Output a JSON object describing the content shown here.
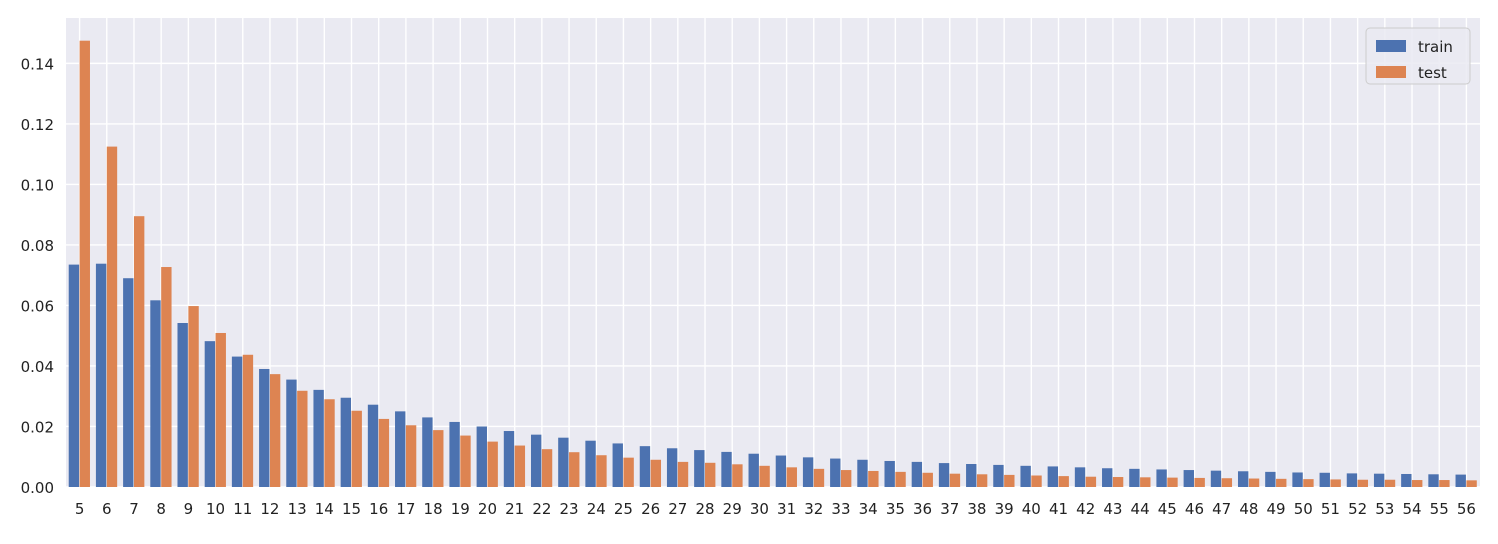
{
  "chart_data": {
    "type": "bar",
    "title": "",
    "xlabel": "",
    "ylabel": "",
    "categories": [
      "5",
      "6",
      "7",
      "8",
      "9",
      "10",
      "11",
      "12",
      "13",
      "14",
      "15",
      "16",
      "17",
      "18",
      "19",
      "20",
      "21",
      "22",
      "23",
      "24",
      "25",
      "26",
      "27",
      "28",
      "29",
      "30",
      "31",
      "32",
      "33",
      "34",
      "35",
      "36",
      "37",
      "38",
      "39",
      "40",
      "41",
      "42",
      "43",
      "44",
      "45",
      "46",
      "47",
      "48",
      "49",
      "50",
      "51",
      "52",
      "53",
      "54",
      "55",
      "56"
    ],
    "series": [
      {
        "name": "train",
        "color": "#4c72b0",
        "values": [
          0.0735,
          0.0738,
          0.069,
          0.0617,
          0.0542,
          0.0482,
          0.0431,
          0.039,
          0.0355,
          0.0321,
          0.0295,
          0.0272,
          0.025,
          0.023,
          0.0215,
          0.02,
          0.0185,
          0.0173,
          0.0163,
          0.0153,
          0.0144,
          0.0135,
          0.0128,
          0.0122,
          0.0116,
          0.011,
          0.0104,
          0.0098,
          0.0094,
          0.009,
          0.0086,
          0.0083,
          0.0079,
          0.0076,
          0.0073,
          0.007,
          0.0068,
          0.0065,
          0.0062,
          0.006,
          0.0058,
          0.0056,
          0.0054,
          0.0052,
          0.005,
          0.0048,
          0.0047,
          0.0045,
          0.0044,
          0.0043,
          0.0042,
          0.0041
        ]
      },
      {
        "name": "test",
        "color": "#dd8452",
        "values": [
          0.1475,
          0.1125,
          0.0895,
          0.0727,
          0.0598,
          0.0509,
          0.0437,
          0.0373,
          0.0318,
          0.029,
          0.0252,
          0.0225,
          0.0204,
          0.0188,
          0.017,
          0.015,
          0.0137,
          0.0125,
          0.0115,
          0.0105,
          0.0097,
          0.009,
          0.0083,
          0.008,
          0.0075,
          0.007,
          0.0065,
          0.006,
          0.0056,
          0.0053,
          0.005,
          0.0047,
          0.0044,
          0.0042,
          0.004,
          0.0038,
          0.0036,
          0.0034,
          0.0033,
          0.0032,
          0.0031,
          0.003,
          0.0029,
          0.0028,
          0.0027,
          0.0026,
          0.0025,
          0.0024,
          0.0024,
          0.0023,
          0.0023,
          0.0022
        ]
      }
    ],
    "ylim": [
      0,
      0.155
    ],
    "yticks": [
      "0.00",
      "0.02",
      "0.04",
      "0.06",
      "0.08",
      "0.10",
      "0.12",
      "0.14"
    ],
    "grid": true,
    "legend_position": "top-right",
    "background_color": "#eaeaf2",
    "grid_color": "#ffffff"
  }
}
